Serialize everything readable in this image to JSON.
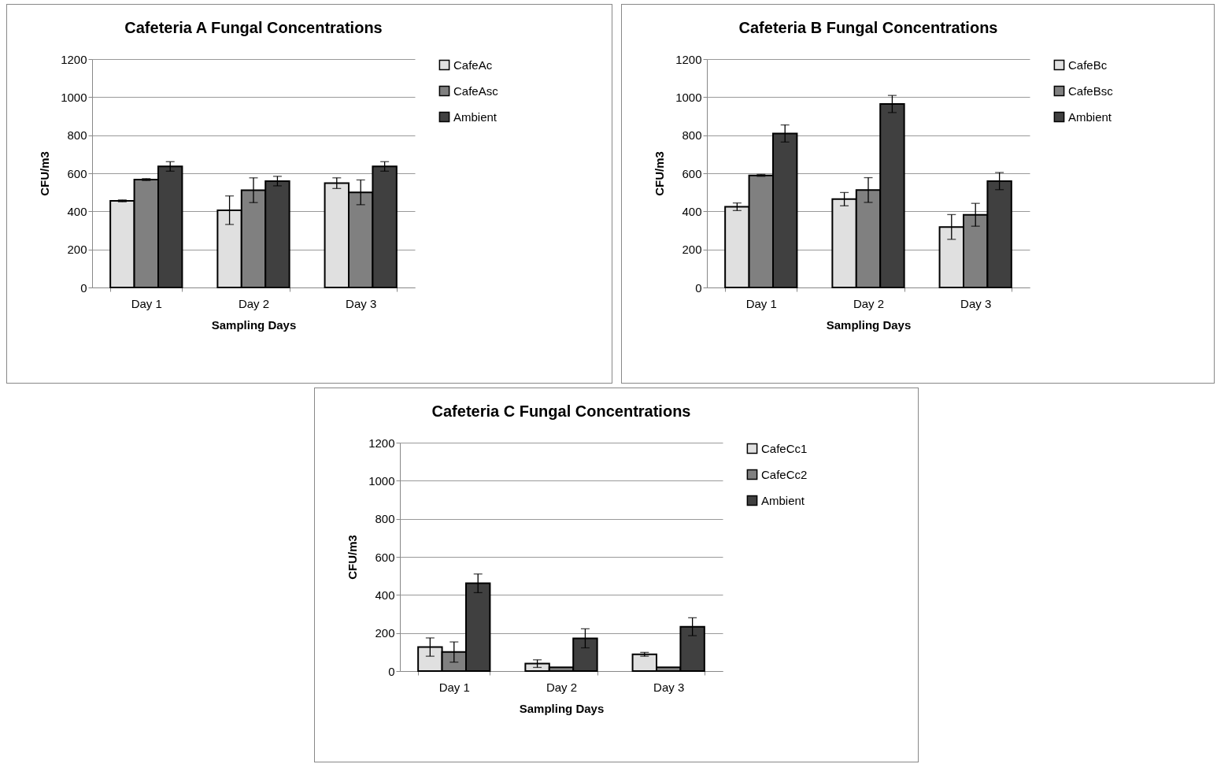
{
  "chart_data": [
    {
      "type": "bar",
      "title": "Cafeteria A Fungal Concentrations",
      "xlabel": "Sampling Days",
      "ylabel": "CFU/m3",
      "categories": [
        "Day 1",
        "Day 2",
        "Day 3"
      ],
      "ylim": [
        0,
        1200
      ],
      "yticks": [
        0,
        200,
        400,
        600,
        800,
        1000,
        1200
      ],
      "grid": "y",
      "legend": "right",
      "series": [
        {
          "name": "CafeAc",
          "color": "#e0e0e0",
          "values": [
            455,
            406,
            548
          ],
          "errors": [
            5,
            75,
            28
          ]
        },
        {
          "name": "CafeAsc",
          "color": "#808080",
          "values": [
            567,
            511,
            500
          ],
          "errors": [
            5,
            65,
            65
          ]
        },
        {
          "name": "Ambient",
          "color": "#404040",
          "values": [
            636,
            559,
            636
          ],
          "errors": [
            25,
            25,
            25
          ]
        }
      ]
    },
    {
      "type": "bar",
      "title": "Cafeteria B Fungal Concentrations",
      "xlabel": "Sampling Days",
      "ylabel": "CFU/m3",
      "categories": [
        "Day 1",
        "Day 2",
        "Day 3"
      ],
      "ylim": [
        0,
        1200
      ],
      "yticks": [
        0,
        200,
        400,
        600,
        800,
        1000,
        1200
      ],
      "grid": "y",
      "legend": "right",
      "series": [
        {
          "name": "CafeBc",
          "color": "#e0e0e0",
          "values": [
            424,
            464,
            318
          ],
          "errors": [
            20,
            35,
            65
          ]
        },
        {
          "name": "CafeBsc",
          "color": "#808080",
          "values": [
            589,
            512,
            382
          ],
          "errors": [
            5,
            65,
            60
          ]
        },
        {
          "name": "Ambient",
          "color": "#404040",
          "values": [
            809,
            964,
            559
          ],
          "errors": [
            45,
            45,
            45
          ]
        }
      ]
    },
    {
      "type": "bar",
      "title": "Cafeteria C Fungal Concentrations",
      "xlabel": "Sampling Days",
      "ylabel": "CFU/m3",
      "categories": [
        "Day 1",
        "Day 2",
        "Day 3"
      ],
      "ylim": [
        0,
        1200
      ],
      "yticks": [
        0,
        200,
        400,
        600,
        800,
        1000,
        1200
      ],
      "grid": "y",
      "legend": "right",
      "series": [
        {
          "name": "CafeCc1",
          "color": "#e0e0e0",
          "values": [
            126,
            39,
            88
          ],
          "errors": [
            48,
            20,
            10
          ]
        },
        {
          "name": "CafeCc2",
          "color": "#808080",
          "values": [
            100,
            20,
            20
          ],
          "errors": [
            53,
            null,
            null
          ]
        },
        {
          "name": "Ambient",
          "color": "#404040",
          "values": [
            461,
            172,
            233
          ],
          "errors": [
            49,
            50,
            47
          ]
        }
      ]
    }
  ]
}
